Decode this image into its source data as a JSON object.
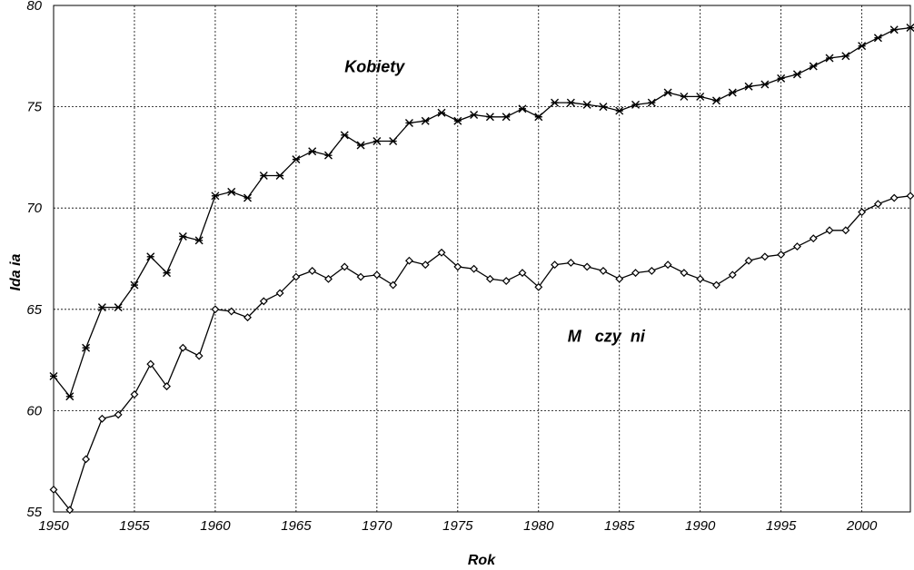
{
  "chart_data": {
    "type": "line",
    "title": "",
    "xlabel": "Rok",
    "ylabel": "Ida ia",
    "xlim": [
      1950,
      2003
    ],
    "ylim": [
      55,
      80
    ],
    "xticks": [
      "1950",
      "1955",
      "1960",
      "1965",
      "1970",
      "1975",
      "1980",
      "1985",
      "1990",
      "1995",
      "2000"
    ],
    "yticks": [
      "55",
      "60",
      "65",
      "70",
      "75",
      "80"
    ],
    "grid": true,
    "x": [
      1950,
      1951,
      1952,
      1953,
      1954,
      1955,
      1956,
      1957,
      1958,
      1959,
      1960,
      1961,
      1962,
      1963,
      1964,
      1965,
      1966,
      1967,
      1968,
      1969,
      1970,
      1971,
      1972,
      1973,
      1974,
      1975,
      1976,
      1977,
      1978,
      1979,
      1980,
      1981,
      1982,
      1983,
      1984,
      1985,
      1986,
      1987,
      1988,
      1989,
      1990,
      1991,
      1992,
      1993,
      1994,
      1995,
      1996,
      1997,
      1998,
      1999,
      2000,
      2001,
      2002,
      2003
    ],
    "series": [
      {
        "name": "Kobiety",
        "marker": "x",
        "values": [
          61.7,
          60.7,
          63.1,
          65.1,
          65.1,
          66.2,
          67.6,
          66.8,
          68.6,
          68.4,
          70.6,
          70.8,
          70.5,
          71.6,
          71.6,
          72.4,
          72.8,
          72.6,
          73.6,
          73.1,
          73.3,
          73.3,
          74.2,
          74.3,
          74.7,
          74.3,
          74.6,
          74.5,
          74.5,
          74.9,
          74.5,
          75.2,
          75.2,
          75.1,
          75.0,
          74.8,
          75.1,
          75.2,
          75.7,
          75.5,
          75.5,
          75.3,
          75.7,
          76.0,
          76.1,
          76.4,
          76.6,
          77.0,
          77.4,
          77.5,
          78.0,
          78.4,
          78.8,
          78.9
        ]
      },
      {
        "name": "M   czy  ni",
        "marker": "diamond",
        "values": [
          56.1,
          55.1,
          57.6,
          59.6,
          59.8,
          60.8,
          62.3,
          61.2,
          63.1,
          62.7,
          65.0,
          64.9,
          64.6,
          65.4,
          65.8,
          66.6,
          66.9,
          66.5,
          67.1,
          66.6,
          66.7,
          66.2,
          67.4,
          67.2,
          67.8,
          67.1,
          67.0,
          66.5,
          66.4,
          66.8,
          66.1,
          67.2,
          67.3,
          67.1,
          66.9,
          66.5,
          66.8,
          66.9,
          67.2,
          66.8,
          66.5,
          66.2,
          66.7,
          67.4,
          67.6,
          67.7,
          68.1,
          68.5,
          68.9,
          68.9,
          69.8,
          70.2,
          70.5,
          70.6
        ]
      }
    ],
    "annotations": [
      {
        "text": "Kobiety",
        "x": 1968,
        "y": 76.7
      },
      {
        "text": "M   czy  ni",
        "x": 1981.8,
        "y": 63.4
      }
    ]
  }
}
